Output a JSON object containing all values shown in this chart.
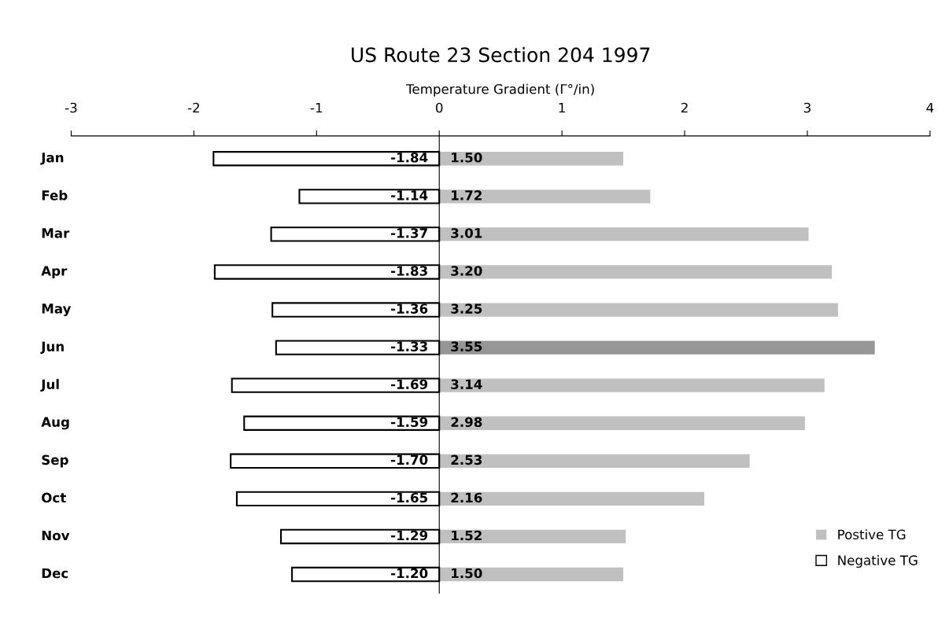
{
  "chart_data": {
    "type": "bar",
    "orientation": "horizontal",
    "title": "US Route 23 Section 204 1997",
    "xlabel": "Temperature Gradient (Γ°/in)",
    "categories": [
      "Jan",
      "Feb",
      "Mar",
      "Apr",
      "May",
      "Jun",
      "Jul",
      "Aug",
      "Sep",
      "Oct",
      "Nov",
      "Dec"
    ],
    "series": [
      {
        "name": "Postive TG",
        "color": "#c0c0c0",
        "colors": [
          "#c0c0c0",
          "#c0c0c0",
          "#c0c0c0",
          "#c0c0c0",
          "#c0c0c0",
          "#969696",
          "#c0c0c0",
          "#c0c0c0",
          "#c0c0c0",
          "#c0c0c0",
          "#c0c0c0",
          "#c0c0c0"
        ],
        "values": [
          1.5,
          1.72,
          3.01,
          3.2,
          3.25,
          3.55,
          3.14,
          2.98,
          2.53,
          2.16,
          1.52,
          1.5
        ],
        "value_labels": [
          "1.50",
          "1.72",
          "3.01",
          "3.20",
          "3.25",
          "3.55",
          "3.14",
          "2.98",
          "2.53",
          "2.16",
          "1.52",
          "1.50"
        ]
      },
      {
        "name": "Negative TG",
        "color": "#ffffff",
        "values": [
          -1.84,
          -1.14,
          -1.37,
          -1.83,
          -1.36,
          -1.33,
          -1.69,
          -1.59,
          -1.7,
          -1.65,
          -1.29,
          -1.2
        ],
        "value_labels": [
          "-1.84",
          "-1.14",
          "-1.37",
          "-1.83",
          "-1.36",
          "-1.33",
          "-1.69",
          "-1.59",
          "-1.70",
          "-1.65",
          "-1.29",
          "-1.20"
        ]
      }
    ],
    "xlim": [
      -3,
      4
    ],
    "xticks": [
      -3,
      -2,
      -1,
      0,
      1,
      2,
      3,
      4
    ],
    "stacked": true,
    "legend": "bottom right"
  }
}
